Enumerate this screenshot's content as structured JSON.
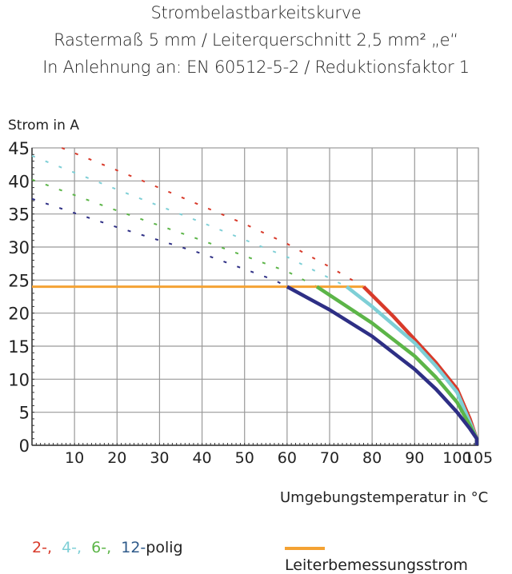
{
  "chart_data": {
    "type": "line",
    "title": "Strombelastbarkeitskurve",
    "subtitle_lines": [
      "Rastermaß 5 mm / Leiterquerschnitt 2,5 mm² „e“",
      "In Anlehnung an: EN 60512-5-2 / Reduktionsfaktor 1"
    ],
    "ylabel": "Strom in A",
    "xlabel": "Umgebungstemperatur in °C",
    "xlim": [
      0,
      105
    ],
    "ylim": [
      0,
      45
    ],
    "xticks": [
      "10",
      "20",
      "30",
      "40",
      "50",
      "60",
      "70",
      "80",
      "90",
      "100",
      "105"
    ],
    "xtick_values": [
      10,
      20,
      30,
      40,
      50,
      60,
      70,
      80,
      90,
      100,
      105
    ],
    "yticks": [
      "0",
      "5",
      "10",
      "15",
      "20",
      "25",
      "30",
      "35",
      "40",
      "45"
    ],
    "ytick_values": [
      0,
      5,
      10,
      15,
      20,
      25,
      30,
      35,
      40,
      45
    ],
    "grid": true,
    "legend_placement": "bottom",
    "series": [
      {
        "name": "2-,",
        "color": "#d83a2a",
        "dashed": [
          [
            7,
            45
          ],
          [
            25,
            40.3
          ],
          [
            50,
            33.5
          ],
          [
            60,
            30.5
          ],
          [
            70,
            27
          ],
          [
            78,
            24
          ]
        ],
        "solid": [
          [
            78,
            24
          ],
          [
            85,
            19.5
          ],
          [
            90,
            16
          ],
          [
            95,
            12.5
          ],
          [
            100,
            8.5
          ],
          [
            103,
            4
          ],
          [
            104.6,
            1
          ],
          [
            104.6,
            0
          ]
        ]
      },
      {
        "name": "4-,",
        "color": "#7ecfd6",
        "dashed": [
          [
            0,
            43.8
          ],
          [
            20,
            38.7
          ],
          [
            40,
            33.7
          ],
          [
            60,
            28.5
          ],
          [
            74,
            24
          ]
        ],
        "solid": [
          [
            74,
            24
          ],
          [
            80,
            21
          ],
          [
            90,
            15.5
          ],
          [
            95,
            12
          ],
          [
            100,
            8
          ],
          [
            103,
            3.5
          ],
          [
            104.6,
            1
          ],
          [
            104.6,
            0
          ]
        ]
      },
      {
        "name": "6-,",
        "color": "#5cb548",
        "dashed": [
          [
            0,
            40.2
          ],
          [
            20,
            35.5
          ],
          [
            40,
            31
          ],
          [
            60,
            26.3
          ],
          [
            67,
            24
          ]
        ],
        "solid": [
          [
            67,
            24
          ],
          [
            80,
            18.5
          ],
          [
            90,
            13.5
          ],
          [
            95,
            10.3
          ],
          [
            100,
            6.5
          ],
          [
            103,
            3
          ],
          [
            104.6,
            1
          ],
          [
            104.6,
            0
          ]
        ]
      },
      {
        "name": "12-",
        "color": "#2e2f85",
        "dashed": [
          [
            0,
            37.3
          ],
          [
            20,
            33
          ],
          [
            40,
            29
          ],
          [
            57,
            25
          ],
          [
            60,
            24
          ]
        ],
        "solid": [
          [
            60,
            24
          ],
          [
            70,
            20.5
          ],
          [
            80,
            16.5
          ],
          [
            90,
            11.5
          ],
          [
            95,
            8.5
          ],
          [
            100,
            5
          ],
          [
            103,
            2.5
          ],
          [
            104.6,
            1
          ],
          [
            104.6,
            0
          ]
        ]
      }
    ],
    "reference_line": {
      "name": "Leiterbemessungsstrom",
      "color": "#f4a233",
      "y": 24,
      "x_range": [
        0,
        78
      ]
    },
    "legend_suffix": "polig"
  }
}
